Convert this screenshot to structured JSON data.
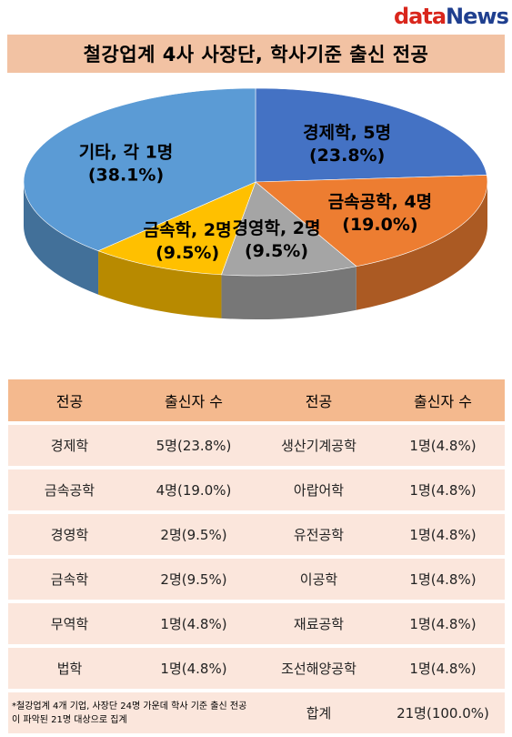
{
  "logo": {
    "part1": "data",
    "part2": "News"
  },
  "title": "철강업계 4사 사장단, 학사기준 출신 전공",
  "chart_data": {
    "type": "pie",
    "title": "철강업계 4사 사장단, 학사기준 출신 전공",
    "slices": [
      {
        "label": "경제학, 5명",
        "pct_label": "(23.8%)",
        "value": 23.8,
        "color": "#4472c4"
      },
      {
        "label": "금속공학, 4명",
        "pct_label": "(19.0%)",
        "value": 19.0,
        "color": "#ed7d31"
      },
      {
        "label": "경영학, 2명",
        "pct_label": "(9.5%)",
        "value": 9.5,
        "color": "#a5a5a5"
      },
      {
        "label": "금속학, 2명",
        "pct_label": "(9.5%)",
        "value": 9.5,
        "color": "#ffc000"
      },
      {
        "label": "기타, 각 1명",
        "pct_label": "(38.1%)",
        "value": 38.1,
        "color": "#5b9bd5"
      }
    ]
  },
  "table": {
    "headers": [
      "전공",
      "출신자 수",
      "전공",
      "출신자 수"
    ],
    "rows": [
      [
        "경제학",
        "5명(23.8%)",
        "생산기계공학",
        "1명(4.8%)"
      ],
      [
        "금속공학",
        "4명(19.0%)",
        "아랍어학",
        "1명(4.8%)"
      ],
      [
        "경영학",
        "2명(9.5%)",
        "유전공학",
        "1명(4.8%)"
      ],
      [
        "금속학",
        "2명(9.5%)",
        "이공학",
        "1명(4.8%)"
      ],
      [
        "무역학",
        "1명(4.8%)",
        "재료공학",
        "1명(4.8%)"
      ],
      [
        "법학",
        "1명(4.8%)",
        "조선해양공학",
        "1명(4.8%)"
      ]
    ],
    "note": "*철강업계 4개 기업, 사장단 24명 가운데 학사 기준 출신 전공이 파악된 21명 대상으로 집계",
    "total_label": "합계",
    "total_value": "21명(100.0%)"
  }
}
